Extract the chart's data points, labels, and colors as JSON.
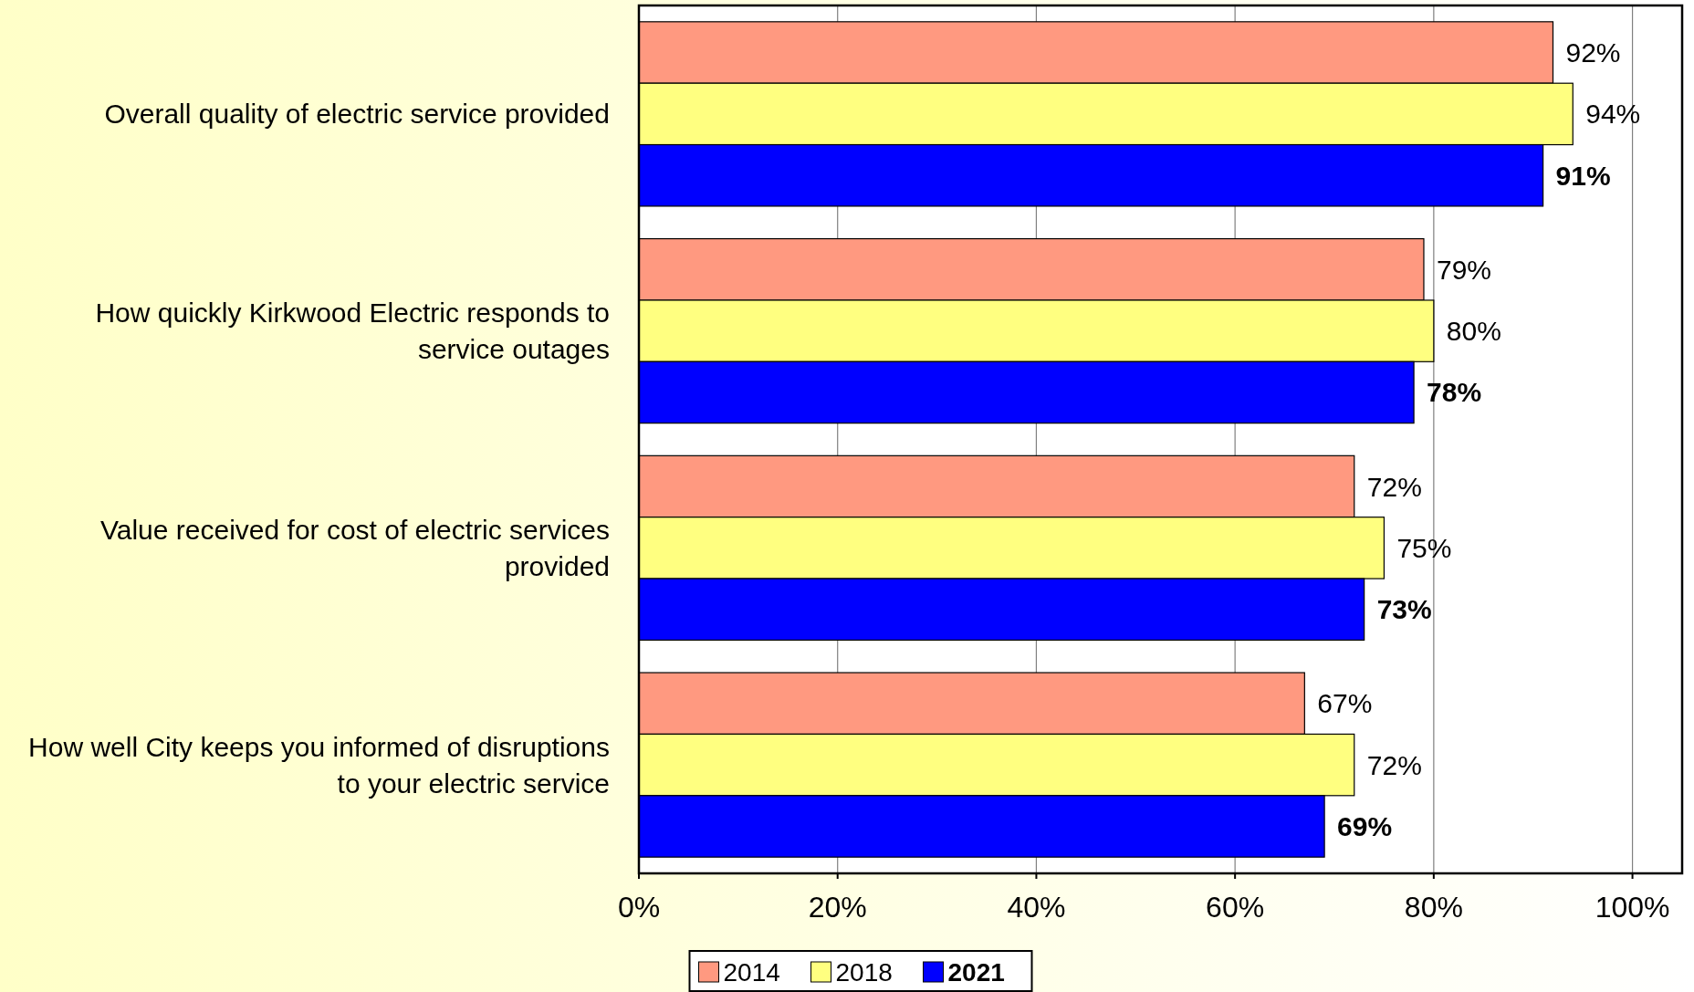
{
  "chart_data": {
    "type": "bar",
    "orientation": "horizontal",
    "categories": [
      "Overall quality of electric service provided",
      "How quickly Kirkwood Electric responds to service outages",
      "Value received for cost of electric services provided",
      "How well City keeps you informed of disruptions to your electric service"
    ],
    "series": [
      {
        "name": "2014",
        "color": "#ff9980",
        "values": [
          92,
          79,
          72,
          67
        ],
        "value_labels": [
          "92%",
          "79%",
          "72%",
          "67%"
        ]
      },
      {
        "name": "2018",
        "color": "#ffff80",
        "values": [
          94,
          80,
          75,
          72
        ],
        "value_labels": [
          "94%",
          "80%",
          "75%",
          "72%"
        ]
      },
      {
        "name": "2021",
        "color": "#0000ff",
        "values": [
          91,
          78,
          73,
          69
        ],
        "value_labels": [
          "91%",
          "78%",
          "73%",
          "69%"
        ]
      }
    ],
    "xlim": [
      0,
      105
    ],
    "xticks": [
      {
        "value": 0,
        "label": "0%"
      },
      {
        "value": 20,
        "label": "20%"
      },
      {
        "value": 40,
        "label": "40%"
      },
      {
        "value": 60,
        "label": "60%"
      },
      {
        "value": 80,
        "label": "80%"
      },
      {
        "value": 100,
        "label": "100%"
      }
    ],
    "grid": "x",
    "legend": "bottom"
  }
}
